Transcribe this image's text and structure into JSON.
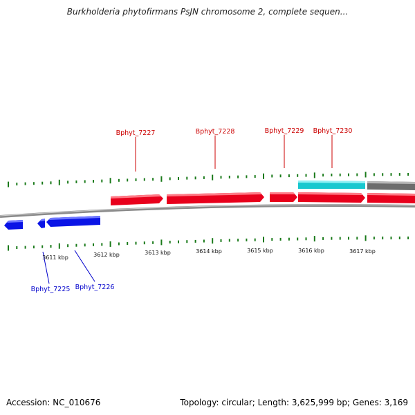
{
  "title": "Burkholderia phytofirmans PsJN chromosome 2, complete sequen...",
  "footer": {
    "accession": "Accession: NC_010676",
    "stats": "Topology: circular; Length: 3,625,999 bp; Genes: 3,169"
  },
  "colors": {
    "forward_gene": "#e8001c",
    "reverse_gene": "#0a14e6",
    "rna_gene": "#18c8cf",
    "other_feature": "#707070",
    "backbone": "#8a8a8a",
    "tick": "#1a7a1a",
    "forward_label": "#cc0000",
    "reverse_label": "#0000cc"
  },
  "scale_labels": [
    "3611 kbp",
    "3612 kbp",
    "3613 kbp",
    "3614 kbp",
    "3615 kbp",
    "3616 kbp",
    "3617 kbp"
  ],
  "gene_labels": {
    "forward": [
      "Bphyt_7227",
      "Bphyt_7228",
      "Bphyt_7229",
      "Bphyt_7230"
    ],
    "reverse": [
      "Bphyt_7225",
      "Bphyt_7226"
    ]
  }
}
